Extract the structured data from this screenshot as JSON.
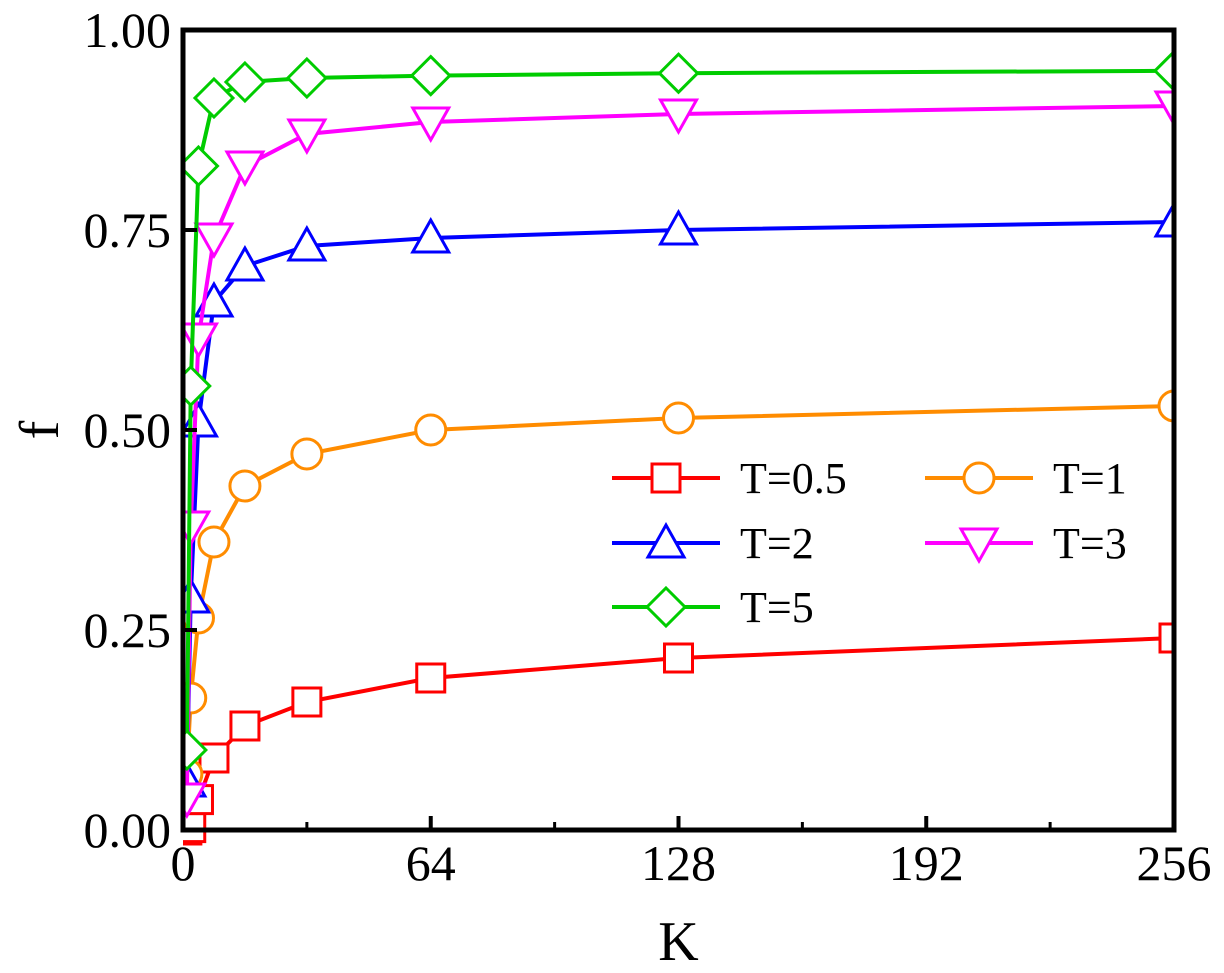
{
  "chart_data": {
    "type": "line",
    "xlabel": "K",
    "ylabel": "f",
    "xlim": [
      0,
      256
    ],
    "ylim": [
      0,
      1
    ],
    "xticks": [
      0,
      64,
      128,
      192,
      256
    ],
    "yticks": [
      0,
      0.25,
      0.5,
      0.75,
      1.0
    ],
    "xtick_labels": [
      "0",
      "64",
      "128",
      "192",
      "256"
    ],
    "ytick_labels": [
      "0.00",
      "0.25",
      "0.50",
      "0.75",
      "1.00"
    ],
    "grid": false,
    "legend_position": "center-right",
    "series": [
      {
        "name": "T=0.5",
        "color": "#ff0000",
        "marker": "square",
        "x": [
          1,
          2,
          4,
          8,
          16,
          32,
          64,
          128,
          256
        ],
        "y": [
          0.0,
          0.003,
          0.038,
          0.09,
          0.13,
          0.16,
          0.19,
          0.215,
          0.24
        ]
      },
      {
        "name": "T=1",
        "color": "#ff8c00",
        "marker": "circle",
        "x": [
          1,
          2,
          4,
          8,
          16,
          32,
          64,
          128,
          256
        ],
        "y": [
          0.07,
          0.165,
          0.265,
          0.36,
          0.43,
          0.47,
          0.5,
          0.515,
          0.53
        ]
      },
      {
        "name": "T=2",
        "color": "#0000ff",
        "marker": "triangle-up",
        "x": [
          1,
          2,
          4,
          8,
          16,
          32,
          64,
          128,
          256
        ],
        "y": [
          0.06,
          0.29,
          0.51,
          0.66,
          0.705,
          0.73,
          0.74,
          0.75,
          0.76
        ]
      },
      {
        "name": "T=3",
        "color": "#ff00ff",
        "marker": "triangle-down",
        "x": [
          1,
          2,
          4,
          8,
          16,
          32,
          64,
          128,
          256
        ],
        "y": [
          0.04,
          0.38,
          0.615,
          0.74,
          0.83,
          0.87,
          0.885,
          0.895,
          0.905
        ]
      },
      {
        "name": "T=5",
        "color": "#00cc00",
        "marker": "diamond",
        "x": [
          1,
          2,
          4,
          8,
          16,
          32,
          64,
          128,
          256
        ],
        "y": [
          0.1,
          0.555,
          0.83,
          0.915,
          0.935,
          0.94,
          0.943,
          0.946,
          0.949
        ]
      }
    ]
  }
}
